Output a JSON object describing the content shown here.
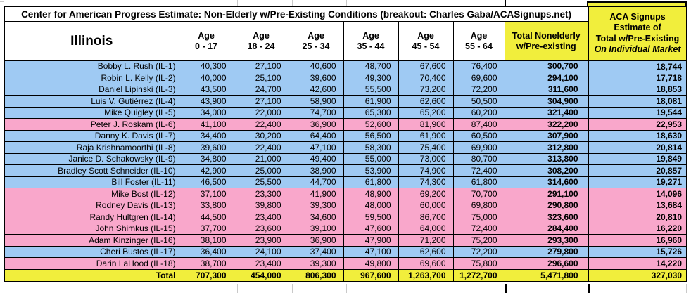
{
  "colors": {
    "democrat_row": "#9FCAF3",
    "republican_row": "#F9A7CB",
    "highlight_yellow": "#F1EE3C"
  },
  "table": {
    "title": "Center for American Progress Estimate: Non-Elderly w/Pre-Existing Conditions (breakout: Charles Gaba/ACASignups.net)",
    "state": "Illinois",
    "age_headers": [
      {
        "l1": "Age",
        "l2": "0 - 17"
      },
      {
        "l1": "Age",
        "l2": "18 - 24"
      },
      {
        "l1": "Age",
        "l2": "25 - 34"
      },
      {
        "l1": "Age",
        "l2": "35 - 44"
      },
      {
        "l1": "Age",
        "l2": "45 - 54"
      },
      {
        "l1": "Age",
        "l2": "55 - 64"
      }
    ],
    "total_header": {
      "l1": "Total Nonelderly",
      "l2": "w/Pre-existing"
    },
    "aca_header": [
      "ACA Signups",
      "Estimate of",
      "Total w/Pre-Existing",
      "On Individual Market"
    ],
    "rows": [
      {
        "name": "Bobby L. Rush (IL-1)",
        "party": "D",
        "values": [
          "40,300",
          "27,100",
          "40,600",
          "48,700",
          "67,600",
          "76,400"
        ],
        "total": "300,700",
        "aca": "18,744"
      },
      {
        "name": "Robin L. Kelly (IL-2)",
        "party": "D",
        "values": [
          "40,000",
          "25,100",
          "39,600",
          "49,300",
          "70,400",
          "69,600"
        ],
        "total": "294,100",
        "aca": "17,718"
      },
      {
        "name": "Daniel Lipinski (IL-3)",
        "party": "D",
        "values": [
          "43,500",
          "24,700",
          "42,600",
          "55,500",
          "73,200",
          "72,200"
        ],
        "total": "311,600",
        "aca": "18,853"
      },
      {
        "name": "Luis V. Gutiérrez (IL-4)",
        "party": "D",
        "values": [
          "43,900",
          "27,100",
          "58,900",
          "61,900",
          "62,600",
          "50,500"
        ],
        "total": "304,900",
        "aca": "18,081"
      },
      {
        "name": "Mike Quigley (IL-5)",
        "party": "D",
        "values": [
          "34,000",
          "22,000",
          "74,700",
          "65,300",
          "65,200",
          "60,200"
        ],
        "total": "321,400",
        "aca": "19,544"
      },
      {
        "name": "Peter J. Roskam (IL-6)",
        "party": "R",
        "values": [
          "41,100",
          "22,400",
          "36,900",
          "52,600",
          "81,900",
          "87,400"
        ],
        "total": "322,200",
        "aca": "22,953"
      },
      {
        "name": "Danny K. Davis (IL-7)",
        "party": "D",
        "values": [
          "34,400",
          "30,200",
          "64,400",
          "56,500",
          "61,900",
          "60,500"
        ],
        "total": "307,900",
        "aca": "18,630"
      },
      {
        "name": "Raja Krishnamoorthi (IL-8)",
        "party": "D",
        "values": [
          "39,600",
          "22,400",
          "47,100",
          "58,300",
          "75,400",
          "69,900"
        ],
        "total": "312,800",
        "aca": "20,814"
      },
      {
        "name": "Janice D. Schakowsky (IL-9)",
        "party": "D",
        "values": [
          "34,800",
          "21,000",
          "49,400",
          "55,000",
          "73,000",
          "80,700"
        ],
        "total": "313,800",
        "aca": "19,849"
      },
      {
        "name": "Bradley Scott Schneider (IL-10)",
        "party": "D",
        "values": [
          "42,900",
          "25,000",
          "38,900",
          "53,900",
          "74,900",
          "72,400"
        ],
        "total": "308,200",
        "aca": "20,857"
      },
      {
        "name": "Bill Foster (IL-11)",
        "party": "D",
        "values": [
          "46,500",
          "25,500",
          "44,700",
          "61,800",
          "74,300",
          "61,800"
        ],
        "total": "314,600",
        "aca": "19,271"
      },
      {
        "name": "Mike Bost (IL-12)",
        "party": "R",
        "values": [
          "37,100",
          "23,300",
          "41,900",
          "48,900",
          "69,200",
          "70,700"
        ],
        "total": "291,100",
        "aca": "14,096"
      },
      {
        "name": "Rodney Davis (IL-13)",
        "party": "R",
        "values": [
          "33,800",
          "39,800",
          "39,300",
          "48,000",
          "60,000",
          "69,800"
        ],
        "total": "290,800",
        "aca": "13,684"
      },
      {
        "name": "Randy Hultgren (IL-14)",
        "party": "R",
        "values": [
          "44,500",
          "23,400",
          "34,600",
          "59,500",
          "86,700",
          "75,000"
        ],
        "total": "323,600",
        "aca": "20,810"
      },
      {
        "name": "John Shimkus (IL-15)",
        "party": "R",
        "values": [
          "37,700",
          "23,600",
          "39,100",
          "47,600",
          "64,000",
          "72,400"
        ],
        "total": "284,400",
        "aca": "16,220"
      },
      {
        "name": "Adam Kinzinger (IL-16)",
        "party": "R",
        "values": [
          "38,100",
          "23,900",
          "36,900",
          "47,900",
          "71,200",
          "75,200"
        ],
        "total": "293,300",
        "aca": "16,960"
      },
      {
        "name": "Cheri Bustos (IL-17)",
        "party": "D",
        "values": [
          "36,400",
          "24,100",
          "37,400",
          "47,100",
          "62,600",
          "72,200"
        ],
        "total": "279,800",
        "aca": "15,726"
      },
      {
        "name": "Darin LaHood (IL-18)",
        "party": "R",
        "values": [
          "38,700",
          "23,400",
          "39,300",
          "49,800",
          "69,600",
          "75,800"
        ],
        "total": "296,600",
        "aca": "14,220"
      }
    ],
    "total_row": {
      "label": "Total",
      "values": [
        "707,300",
        "454,000",
        "806,300",
        "967,600",
        "1,263,700",
        "1,272,700"
      ],
      "total": "5,471,800",
      "aca": "327,030"
    }
  }
}
